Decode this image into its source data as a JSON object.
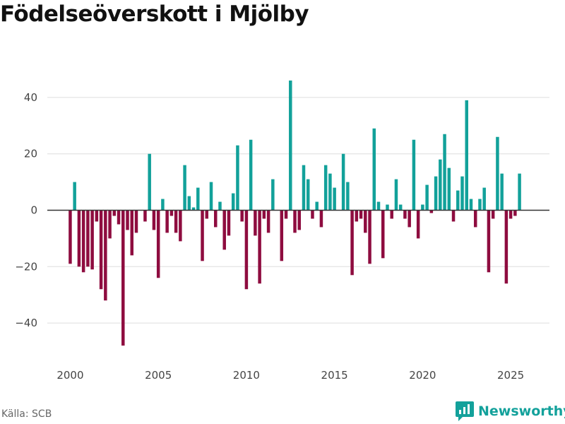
{
  "title": "Födelseöverskott i Mjölby",
  "source": "Källa: SCB",
  "brand": "Newsworthy",
  "colors": {
    "positive": "#12a19a",
    "negative": "#8e0c3f",
    "grid": "#dddddd",
    "zero": "#333333",
    "brand": "#13a19b"
  },
  "chart_data": {
    "type": "bar",
    "title": "Födelseöverskott i Mjölby",
    "xlabel": "",
    "ylabel": "",
    "ylim": [
      -52,
      52
    ],
    "xlim": [
      1998.7,
      2027.2
    ],
    "yticks": [
      -40,
      -20,
      0,
      20,
      40
    ],
    "ytick_labels": [
      "−40",
      "−20",
      "0",
      "20",
      "40"
    ],
    "xticks": [
      2000,
      2005,
      2010,
      2015,
      2020,
      2025
    ],
    "xtick_labels": [
      "2000",
      "2005",
      "2010",
      "2015",
      "2020",
      "2025"
    ],
    "grid": true,
    "frequency": "quarterly",
    "start": "2000-Q1",
    "values": [
      -19,
      10,
      -20,
      -22,
      -20,
      -21,
      -4,
      -28,
      -32,
      -10,
      -2,
      -5,
      -48,
      -7,
      -16,
      -8,
      0,
      -4,
      20,
      -7,
      -24,
      4,
      -8,
      -2,
      -8,
      -11,
      16,
      5,
      1,
      8,
      -18,
      -3,
      10,
      -6,
      3,
      -14,
      -9,
      6,
      23,
      -4,
      -28,
      25,
      -9,
      -26,
      -3,
      -8,
      11,
      0,
      -18,
      -3,
      46,
      -8,
      -7,
      16,
      11,
      -3,
      3,
      -6,
      16,
      13,
      8,
      0,
      20,
      10,
      -23,
      -4,
      -3,
      -8,
      -19,
      29,
      3,
      -17,
      2,
      -3,
      11,
      2,
      -3,
      -6,
      25,
      -10,
      2,
      9,
      -1,
      12,
      18,
      27,
      15,
      -4,
      7,
      12,
      39,
      4,
      -6,
      4,
      8,
      -22,
      -3,
      26,
      13,
      -26,
      -3,
      -2,
      13
    ]
  }
}
